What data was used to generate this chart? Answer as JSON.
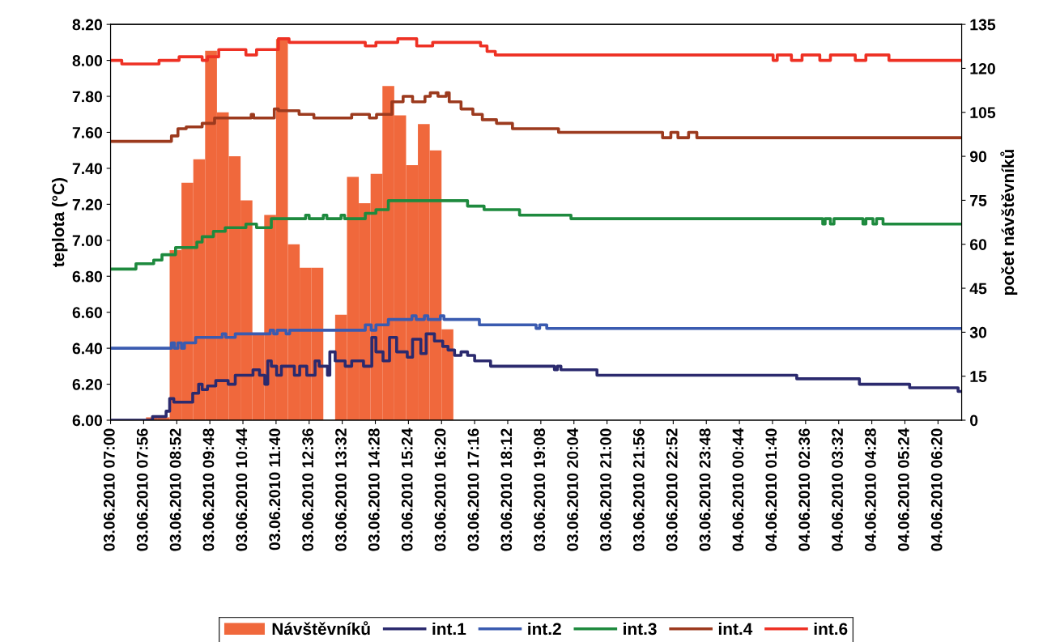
{
  "chart_data": {
    "type": "step",
    "ylabel": "teplota (°C)",
    "y2label": "počet návštěvníků",
    "xlim": [
      "2010-06-03T07:00",
      "2010-06-04T07:00"
    ],
    "ylim": [
      6,
      8.2
    ],
    "y2lim": [
      0,
      135
    ],
    "xticks": [
      {
        "value": "2010-06-03T07:00",
        "label": "03.06.2010 07:00"
      },
      {
        "value": "2010-06-03T07:56",
        "label": "03.06.2010 07:56"
      },
      {
        "value": "2010-06-03T08:52",
        "label": "03.06.2010 08:52"
      },
      {
        "value": "2010-06-03T09:48",
        "label": "03.06.2010 09:48"
      },
      {
        "value": "2010-06-03T10:44",
        "label": "03.06.2010 10:44"
      },
      {
        "value": "2010-06-03T11:40",
        "label": "03.06.2010 11:40"
      },
      {
        "value": "2010-06-03T12:36",
        "label": "03.06.2010 12:36"
      },
      {
        "value": "2010-06-03T13:32",
        "label": "03.06.2010 13:32"
      },
      {
        "value": "2010-06-03T14:28",
        "label": "03.06.2010 14:28"
      },
      {
        "value": "2010-06-03T15:24",
        "label": "03.06.2010 15:24"
      },
      {
        "value": "2010-06-03T16:20",
        "label": "03.06.2010 16:20"
      },
      {
        "value": "2010-06-03T17:16",
        "label": "03.06.2010 17:16"
      },
      {
        "value": "2010-06-03T18:12",
        "label": "03.06.2010 18:12"
      },
      {
        "value": "2010-06-03T19:08",
        "label": "03.06.2010 19:08"
      },
      {
        "value": "2010-06-03T20:04",
        "label": "03.06.2010 20:04"
      },
      {
        "value": "2010-06-03T21:00",
        "label": "03.06.2010 21:00"
      },
      {
        "value": "2010-06-03T21:56",
        "label": "03.06.2010 21:56"
      },
      {
        "value": "2010-06-03T22:52",
        "label": "03.06.2010 22:52"
      },
      {
        "value": "2010-06-03T23:48",
        "label": "03.06.2010 23:48"
      },
      {
        "value": "2010-06-04T00:44",
        "label": "04.06.2010 00:44"
      },
      {
        "value": "2010-06-04T01:40",
        "label": "04.06.2010 01:40"
      },
      {
        "value": "2010-06-04T02:36",
        "label": "04.06.2010 02:36"
      },
      {
        "value": "2010-06-04T03:32",
        "label": "04.06.2010 03:32"
      },
      {
        "value": "2010-06-04T04:28",
        "label": "04.06.2010 04:28"
      },
      {
        "value": "2010-06-04T05:24",
        "label": "04.06.2010 05:24"
      },
      {
        "value": "2010-06-04T06:20",
        "label": "04.06.2010 06:20"
      }
    ],
    "yticks": [
      {
        "value": 6,
        "label": "6.00"
      },
      {
        "value": 6.2,
        "label": "6.20"
      },
      {
        "value": 6.4,
        "label": "6.40"
      },
      {
        "value": 6.6,
        "label": "6.60"
      },
      {
        "value": 6.8,
        "label": "6.80"
      },
      {
        "value": 7,
        "label": "7.00"
      },
      {
        "value": 7.2,
        "label": "7.20"
      },
      {
        "value": 7.4,
        "label": "7.40"
      },
      {
        "value": 7.6,
        "label": "7.60"
      },
      {
        "value": 7.8,
        "label": "7.80"
      },
      {
        "value": 8,
        "label": "8.00"
      },
      {
        "value": 8.2,
        "label": "8.20"
      }
    ],
    "y2ticks": [
      0,
      15,
      30,
      45,
      60,
      75,
      90,
      105,
      120,
      135
    ],
    "legend": "bottom",
    "series": [
      {
        "name": "Návštěvníků",
        "type": "bar",
        "axis": "y2",
        "color": "#f0683c",
        "x": [
          "2010-06-03T08:10",
          "2010-06-03T08:30",
          "2010-06-03T08:50",
          "2010-06-03T09:10",
          "2010-06-03T09:30",
          "2010-06-03T09:50",
          "2010-06-03T10:10",
          "2010-06-03T10:30",
          "2010-06-03T10:50",
          "2010-06-03T11:10",
          "2010-06-03T11:30",
          "2010-06-03T11:50",
          "2010-06-03T12:10",
          "2010-06-03T12:30",
          "2010-06-03T12:50",
          "2010-06-03T13:10",
          "2010-06-03T13:30",
          "2010-06-03T13:50",
          "2010-06-03T14:10",
          "2010-06-03T14:30",
          "2010-06-03T14:50",
          "2010-06-03T15:10",
          "2010-06-03T15:30",
          "2010-06-03T15:50",
          "2010-06-03T16:10",
          "2010-06-03T16:30"
        ],
        "values": [
          1,
          1,
          58,
          81,
          89,
          126,
          105,
          90,
          75,
          29,
          70,
          130,
          60,
          52,
          52,
          0,
          36,
          83,
          74,
          84,
          114,
          104,
          87,
          101,
          92,
          31
        ]
      },
      {
        "name": "int.1",
        "color": "#2b2a6e",
        "x": [
          "2010-06-03T07:00",
          "2010-06-03T08:11",
          "2010-06-03T08:34",
          "2010-06-03T08:40",
          "2010-06-03T08:47",
          "2010-06-03T09:19",
          "2010-06-03T09:29",
          "2010-06-03T09:35",
          "2010-06-03T09:44",
          "2010-06-03T09:58",
          "2010-06-03T10:19",
          "2010-06-03T10:31",
          "2010-06-03T11:01",
          "2010-06-03T11:12",
          "2010-06-03T11:21",
          "2010-06-03T11:26",
          "2010-06-03T11:32",
          "2010-06-03T11:41",
          "2010-06-03T11:49",
          "2010-06-03T12:11",
          "2010-06-03T12:20",
          "2010-06-03T12:32",
          "2010-06-03T12:46",
          "2010-06-03T12:53",
          "2010-06-03T13:07",
          "2010-06-03T13:11",
          "2010-06-03T13:20",
          "2010-06-03T13:37",
          "2010-06-03T13:48",
          "2010-06-03T14:08",
          "2010-06-03T14:22",
          "2010-06-03T14:29",
          "2010-06-03T14:41",
          "2010-06-03T14:52",
          "2010-06-03T15:04",
          "2010-06-03T15:22",
          "2010-06-03T15:31",
          "2010-06-03T15:45",
          "2010-06-03T15:54",
          "2010-06-03T16:08",
          "2010-06-03T16:22",
          "2010-06-03T16:31",
          "2010-06-03T16:42",
          "2010-06-03T16:53",
          "2010-06-03T17:04",
          "2010-06-03T17:16",
          "2010-06-03T17:43",
          "2010-06-03T19:31",
          "2010-06-03T19:36",
          "2010-06-03T19:42",
          "2010-06-03T20:43",
          "2010-06-04T02:21",
          "2010-06-04T04:07",
          "2010-06-04T05:32",
          "2010-06-04T06:54",
          "2010-06-04T07:00"
        ],
        "values": [
          6.0,
          6.02,
          6.05,
          6.12,
          6.1,
          6.15,
          6.2,
          6.17,
          6.19,
          6.22,
          6.2,
          6.25,
          6.28,
          6.25,
          6.2,
          6.33,
          6.3,
          6.25,
          6.3,
          6.25,
          6.3,
          6.25,
          6.33,
          6.3,
          6.25,
          6.38,
          6.33,
          6.3,
          6.33,
          6.3,
          6.46,
          6.38,
          6.33,
          6.46,
          6.38,
          6.35,
          6.45,
          6.37,
          6.48,
          6.44,
          6.41,
          6.39,
          6.36,
          6.38,
          6.36,
          6.33,
          6.3,
          6.28,
          6.3,
          6.28,
          6.25,
          6.23,
          6.2,
          6.18,
          6.16,
          6.16
        ]
      },
      {
        "name": "int.2",
        "color": "#3a5bb0",
        "x": [
          "2010-06-03T07:00",
          "2010-06-03T08:43",
          "2010-06-03T08:48",
          "2010-06-03T08:54",
          "2010-06-03T09:00",
          "2010-06-03T09:05",
          "2010-06-03T09:24",
          "2010-06-03T10:09",
          "2010-06-03T10:15",
          "2010-06-03T10:31",
          "2010-06-03T11:30",
          "2010-06-03T11:36",
          "2010-06-03T11:42",
          "2010-06-03T11:57",
          "2010-06-03T12:03",
          "2010-06-03T14:11",
          "2010-06-03T14:21",
          "2010-06-03T14:29",
          "2010-06-03T14:50",
          "2010-06-03T15:30",
          "2010-06-03T15:37",
          "2010-06-03T15:51",
          "2010-06-03T15:57",
          "2010-06-03T16:18",
          "2010-06-03T16:24",
          "2010-06-03T17:24",
          "2010-06-03T19:00",
          "2010-06-03T19:06",
          "2010-06-03T19:18",
          "2010-06-04T07:00"
        ],
        "values": [
          6.4,
          6.43,
          6.4,
          6.43,
          6.4,
          6.43,
          6.46,
          6.48,
          6.46,
          6.48,
          6.5,
          6.48,
          6.5,
          6.48,
          6.5,
          6.53,
          6.5,
          6.53,
          6.56,
          6.58,
          6.56,
          6.58,
          6.56,
          6.58,
          6.56,
          6.53,
          6.51,
          6.53,
          6.51,
          6.51
        ]
      },
      {
        "name": "int.3",
        "color": "#1e8a3e",
        "x": [
          "2010-06-03T07:00",
          "2010-06-03T07:43",
          "2010-06-03T08:13",
          "2010-06-03T08:27",
          "2010-06-03T08:50",
          "2010-06-03T09:26",
          "2010-06-03T09:35",
          "2010-06-03T09:54",
          "2010-06-03T10:14",
          "2010-06-03T10:49",
          "2010-06-03T11:07",
          "2010-06-03T11:32",
          "2010-06-03T12:30",
          "2010-06-03T12:36",
          "2010-06-03T13:00",
          "2010-06-03T13:06",
          "2010-06-03T13:30",
          "2010-06-03T13:36",
          "2010-06-03T14:11",
          "2010-06-03T14:29",
          "2010-06-03T14:50",
          "2010-06-03T16:42",
          "2010-06-03T17:04",
          "2010-06-03T17:32",
          "2010-06-03T18:32",
          "2010-06-03T19:59",
          "2010-06-04T03:05",
          "2010-06-04T03:09",
          "2010-06-04T03:18",
          "2010-06-04T03:24",
          "2010-06-04T04:13",
          "2010-06-04T04:18",
          "2010-06-04T04:30",
          "2010-06-04T04:36",
          "2010-06-04T04:47",
          "2010-06-04T07:00"
        ],
        "values": [
          6.84,
          6.87,
          6.89,
          6.92,
          6.96,
          6.99,
          7.02,
          7.05,
          7.07,
          7.09,
          7.07,
          7.12,
          7.14,
          7.12,
          7.14,
          7.12,
          7.14,
          7.12,
          7.15,
          7.17,
          7.22,
          7.22,
          7.19,
          7.17,
          7.14,
          7.12,
          7.09,
          7.12,
          7.09,
          7.12,
          7.09,
          7.12,
          7.09,
          7.12,
          7.09,
          7.09
        ]
      },
      {
        "name": "int.4",
        "color": "#9c3a1e",
        "x": [
          "2010-06-03T07:00",
          "2010-06-03T08:43",
          "2010-06-03T08:54",
          "2010-06-03T09:08",
          "2010-06-03T09:35",
          "2010-06-03T09:56",
          "2010-06-03T10:58",
          "2010-06-03T11:02",
          "2010-06-03T11:37",
          "2010-06-03T11:44",
          "2010-06-03T12:19",
          "2010-06-03T12:44",
          "2010-06-03T13:48",
          "2010-06-03T14:18",
          "2010-06-03T14:30",
          "2010-06-03T14:56",
          "2010-06-03T15:15",
          "2010-06-03T15:31",
          "2010-06-03T15:52",
          "2010-06-03T16:01",
          "2010-06-03T16:14",
          "2010-06-03T16:28",
          "2010-06-03T16:33",
          "2010-06-03T16:53",
          "2010-06-03T17:13",
          "2010-06-03T17:29",
          "2010-06-03T17:53",
          "2010-06-03T18:20",
          "2010-06-03T19:38",
          "2010-06-03T22:34",
          "2010-06-03T22:48",
          "2010-06-03T23:00",
          "2010-06-03T23:18",
          "2010-06-03T23:32",
          "2010-06-04T07:00"
        ],
        "values": [
          7.55,
          7.58,
          7.62,
          7.63,
          7.65,
          7.68,
          7.7,
          7.68,
          7.73,
          7.72,
          7.7,
          7.68,
          7.7,
          7.68,
          7.7,
          7.77,
          7.8,
          7.77,
          7.8,
          7.82,
          7.8,
          7.82,
          7.77,
          7.73,
          7.7,
          7.67,
          7.65,
          7.62,
          7.6,
          7.57,
          7.6,
          7.57,
          7.6,
          7.57,
          7.57
        ]
      },
      {
        "name": "int.6",
        "color": "#ee3124",
        "x": [
          "2010-06-03T07:00",
          "2010-06-03T07:19",
          "2010-06-03T08:22",
          "2010-06-03T08:56",
          "2010-06-03T09:35",
          "2010-06-03T09:44",
          "2010-06-03T10:03",
          "2010-06-03T10:49",
          "2010-06-03T11:07",
          "2010-06-03T11:44",
          "2010-06-03T12:02",
          "2010-06-03T14:11",
          "2010-06-03T14:29",
          "2010-06-03T15:06",
          "2010-06-03T15:38",
          "2010-06-03T16:05",
          "2010-06-03T17:26",
          "2010-06-03T17:37",
          "2010-06-03T17:51",
          "2010-06-04T01:41",
          "2010-06-04T01:48",
          "2010-06-04T02:12",
          "2010-06-04T02:30",
          "2010-06-04T03:00",
          "2010-06-04T03:18",
          "2010-06-04T04:00",
          "2010-06-04T04:18",
          "2010-06-04T04:57",
          "2010-06-04T07:00"
        ],
        "values": [
          8.0,
          7.98,
          8.0,
          8.02,
          8.0,
          8.02,
          8.06,
          8.03,
          8.06,
          8.12,
          8.1,
          8.08,
          8.1,
          8.12,
          8.08,
          8.1,
          8.08,
          8.05,
          8.03,
          8.0,
          8.03,
          8.0,
          8.03,
          8.0,
          8.03,
          8.0,
          8.03,
          8.0,
          8.0
        ]
      }
    ]
  }
}
